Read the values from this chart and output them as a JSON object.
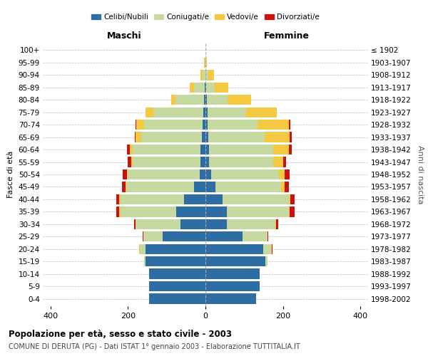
{
  "age_groups": [
    "0-4",
    "5-9",
    "10-14",
    "15-19",
    "20-24",
    "25-29",
    "30-34",
    "35-39",
    "40-44",
    "45-49",
    "50-54",
    "55-59",
    "60-64",
    "65-69",
    "70-74",
    "75-79",
    "80-84",
    "85-89",
    "90-94",
    "95-99",
    "100+"
  ],
  "birth_years": [
    "1998-2002",
    "1993-1997",
    "1988-1992",
    "1983-1987",
    "1978-1982",
    "1973-1977",
    "1968-1972",
    "1963-1967",
    "1958-1962",
    "1953-1957",
    "1948-1952",
    "1943-1947",
    "1938-1942",
    "1933-1937",
    "1928-1932",
    "1923-1927",
    "1918-1922",
    "1913-1917",
    "1908-1912",
    "1903-1907",
    "≤ 1902"
  ],
  "males": {
    "celibi": [
      145,
      145,
      145,
      155,
      155,
      110,
      65,
      75,
      55,
      30,
      15,
      12,
      12,
      10,
      8,
      5,
      3,
      2,
      0,
      0,
      0
    ],
    "coniugati": [
      0,
      0,
      0,
      3,
      15,
      50,
      115,
      145,
      165,
      175,
      185,
      175,
      175,
      155,
      150,
      130,
      75,
      28,
      8,
      2,
      0
    ],
    "vedovi": [
      0,
      0,
      0,
      0,
      2,
      0,
      0,
      2,
      2,
      2,
      3,
      5,
      8,
      15,
      20,
      20,
      10,
      10,
      5,
      2,
      0
    ],
    "divorziati": [
      0,
      0,
      0,
      0,
      0,
      3,
      5,
      8,
      8,
      8,
      10,
      8,
      8,
      2,
      2,
      0,
      0,
      0,
      0,
      0,
      0
    ]
  },
  "females": {
    "nubili": [
      130,
      140,
      140,
      155,
      150,
      95,
      55,
      55,
      45,
      25,
      15,
      10,
      10,
      8,
      5,
      5,
      3,
      2,
      0,
      0,
      0
    ],
    "coniugate": [
      0,
      0,
      0,
      5,
      20,
      65,
      125,
      160,
      170,
      170,
      175,
      165,
      165,
      145,
      130,
      100,
      55,
      22,
      8,
      2,
      0
    ],
    "vedove": [
      0,
      0,
      0,
      0,
      2,
      0,
      2,
      3,
      5,
      10,
      15,
      25,
      40,
      65,
      80,
      80,
      60,
      35,
      15,
      2,
      0
    ],
    "divorziate": [
      0,
      0,
      0,
      0,
      2,
      3,
      5,
      12,
      10,
      10,
      12,
      8,
      8,
      5,
      5,
      0,
      0,
      0,
      0,
      0,
      0
    ]
  },
  "colors": {
    "celibi_nubili": "#2e6da4",
    "coniugati": "#c5d9a0",
    "vedovi": "#f5c842",
    "divorziati": "#cc1111"
  },
  "title": "Popolazione per età, sesso e stato civile - 2003",
  "subtitle": "COMUNE DI DERUTA (PG) - Dati ISTAT 1° gennaio 2003 - Elaborazione TUTTITALIA.IT",
  "xlabel_left": "Maschi",
  "xlabel_right": "Femmine",
  "ylabel": "Fasce di età",
  "ylabel_right": "Anni di nascita",
  "xlim": 420,
  "legend_labels": [
    "Celibi/Nubili",
    "Coniugati/e",
    "Vedovi/e",
    "Divorziati/e"
  ]
}
